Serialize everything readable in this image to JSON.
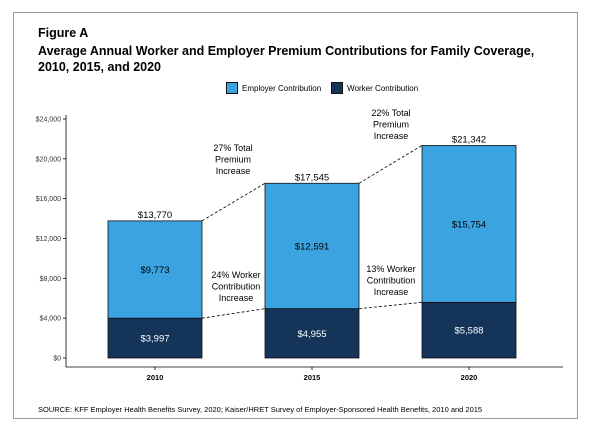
{
  "figure": {
    "label": "Figure A",
    "title": "Average Annual Worker and Employer Premium Contributions for Family Coverage, 2010, 2015, and 2020",
    "source": "SOURCE: KFF Employer Health Benefits Survey, 2020; Kaiser/HRET Survey of Employer-Sponsored Health Benefits, 2010 and 2015"
  },
  "legend": [
    {
      "name": "Employer Contribution",
      "color": "#3ba3e0"
    },
    {
      "name": "Worker Contribution",
      "color": "#14345a"
    }
  ],
  "chart_data": {
    "type": "bar",
    "stacked": true,
    "categories": [
      "2010",
      "2015",
      "2020"
    ],
    "series": [
      {
        "name": "Worker Contribution",
        "values": [
          3997,
          4955,
          5588
        ],
        "labels": [
          "$3,997",
          "$4,955",
          "$5,588"
        ],
        "color": "#14345a"
      },
      {
        "name": "Employer Contribution",
        "values": [
          9773,
          12591,
          15754
        ],
        "labels": [
          "$9,773",
          "$12,591",
          "$15,754"
        ],
        "color": "#3ba3e0"
      }
    ],
    "totals": [
      13770,
      17545,
      21342
    ],
    "total_labels": [
      "$13,770",
      "$17,545",
      "$21,342"
    ],
    "ylim": [
      0,
      24000
    ],
    "yticks": [
      0,
      4000,
      8000,
      12000,
      16000,
      20000,
      24000
    ],
    "ytick_labels": [
      "$0",
      "$4,000",
      "$8,000",
      "$12,000",
      "$16,000",
      "$20,000",
      "$24,000"
    ],
    "xlabel": "",
    "ylabel": "",
    "legend_position": "top",
    "grid": false,
    "annotations": {
      "total_increase": [
        {
          "lines": [
            "27% Total",
            "Premium",
            "Increase"
          ]
        },
        {
          "lines": [
            "22% Total",
            "Premium",
            "Increase"
          ]
        }
      ],
      "worker_increase": [
        {
          "lines": [
            "24% Worker",
            "Contribution",
            "Increase"
          ]
        },
        {
          "lines": [
            "13% Worker",
            "Contribution",
            "Increase"
          ]
        }
      ]
    }
  }
}
